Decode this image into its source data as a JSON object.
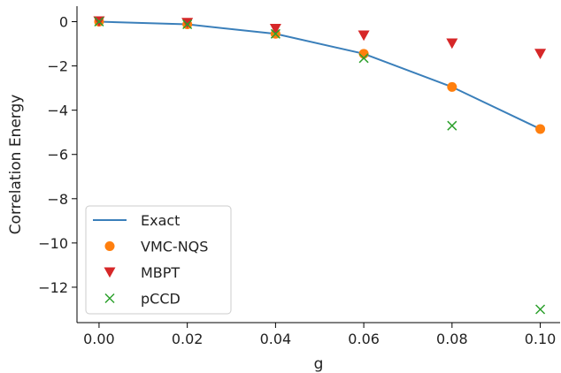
{
  "chart_data": {
    "type": "line",
    "xlabel": "g",
    "ylabel": "Correlation Energy",
    "xlim": [
      -0.005,
      0.1045
    ],
    "ylim": [
      -13.6,
      0.7
    ],
    "xticks": [
      0.0,
      0.02,
      0.04,
      0.06,
      0.08,
      0.1
    ],
    "xtick_labels": [
      "0.00",
      "0.02",
      "0.04",
      "0.06",
      "0.08",
      "0.10"
    ],
    "yticks": [
      0,
      -2,
      -4,
      -6,
      -8,
      -10,
      -12
    ],
    "ytick_labels": [
      "0",
      "−2",
      "−4",
      "−6",
      "−8",
      "−10",
      "−12"
    ],
    "grid": false,
    "legend_position": "lower-left",
    "x": [
      0.0,
      0.02,
      0.04,
      0.06,
      0.08,
      0.1
    ],
    "series": [
      {
        "name": "Exact",
        "kind": "line",
        "color": "#3a7fba",
        "values": [
          0.0,
          -0.12,
          -0.55,
          -1.45,
          -2.95,
          -4.85
        ]
      },
      {
        "name": "VMC-NQS",
        "kind": "circle",
        "color": "#ff7f0e",
        "values": [
          0.0,
          -0.12,
          -0.55,
          -1.45,
          -2.95,
          -4.85
        ]
      },
      {
        "name": "MBPT",
        "kind": "triangle-down",
        "color": "#d62728",
        "values": [
          0.02,
          -0.05,
          -0.32,
          -0.62,
          -0.98,
          -1.45
        ]
      },
      {
        "name": "pCCD",
        "kind": "x",
        "color": "#2ca02c",
        "values": [
          0.0,
          -0.12,
          -0.55,
          -1.65,
          -4.7,
          -13.0
        ]
      }
    ]
  }
}
